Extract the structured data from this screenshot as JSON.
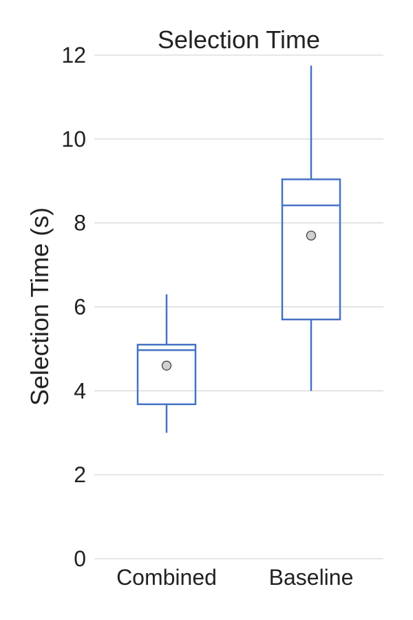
{
  "chart_data": {
    "type": "box",
    "title": "Selection Time",
    "ylabel": "Selection Time (s)",
    "xlabel": "",
    "ylim": [
      0,
      12
    ],
    "yticks": [
      0,
      2,
      4,
      6,
      8,
      10,
      12
    ],
    "grid": "horizontal",
    "colors": {
      "box": "#4472c4",
      "mean_fill": "#d0d0d0",
      "mean_stroke": "#333333",
      "grid": "#cccccc"
    },
    "categories": [
      "Combined",
      "Baseline"
    ],
    "boxes": [
      {
        "category": "Combined",
        "whisker_low": 3.0,
        "q1": 3.68,
        "median": 4.97,
        "q3": 5.1,
        "whisker_high": 6.3,
        "mean": 4.6
      },
      {
        "category": "Baseline",
        "whisker_low": 4.0,
        "q1": 5.7,
        "median": 8.42,
        "q3": 9.04,
        "whisker_high": 11.75,
        "mean": 7.7
      }
    ]
  }
}
